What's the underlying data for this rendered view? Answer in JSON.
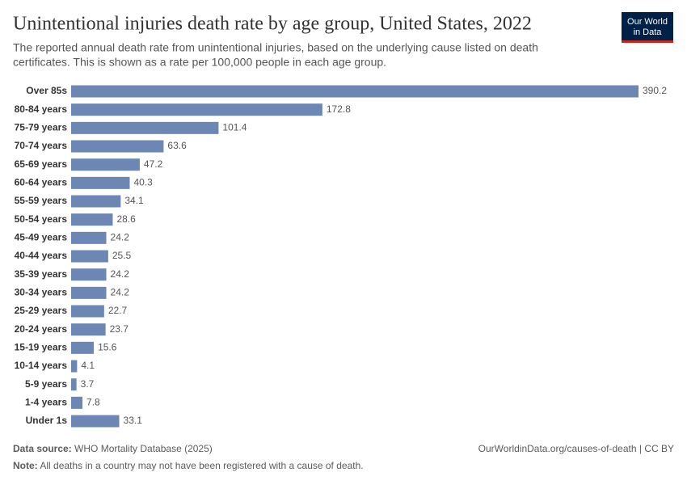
{
  "chart_data": {
    "type": "bar",
    "orientation": "horizontal",
    "title": "Unintentional injuries death rate by age group, United States, 2022",
    "subtitle": [
      "The reported annual death rate from unintentional injuries, based on the underlying cause listed on death",
      "certificates. This is shown as a rate per 100,000 people in each age group."
    ],
    "logo": [
      "Our World",
      "in Data"
    ],
    "categories": [
      "Over 85s",
      "80-84 years",
      "75-79 years",
      "70-74 years",
      "65-69 years",
      "60-64 years",
      "55-59 years",
      "50-54 years",
      "45-49 years",
      "40-44 years",
      "35-39 years",
      "30-34 years",
      "25-29 years",
      "20-24 years",
      "15-19 years",
      "10-14 years",
      "5-9 years",
      "1-4 years",
      "Under 1s"
    ],
    "values": [
      390.2,
      172.8,
      101.4,
      63.6,
      47.2,
      40.3,
      34.1,
      28.6,
      24.2,
      25.5,
      24.2,
      24.2,
      22.7,
      23.7,
      15.6,
      4.1,
      3.7,
      7.8,
      33.1
    ],
    "color": "#6d87b4",
    "source_label": "Data source:",
    "source": "WHO Mortality Database (2025)",
    "url": "OurWorldinData.org/causes-of-death | CC BY",
    "note_label": "Note:",
    "note": "All deaths in a country may not have been registered with a cause of death."
  }
}
